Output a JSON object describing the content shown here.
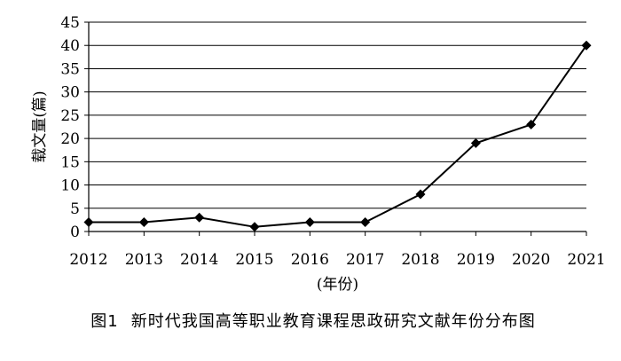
{
  "caption": {
    "label": "图1",
    "text": "新时代我国高等职业教育课程思政研究文献年份分布图"
  },
  "chart_data": {
    "type": "line",
    "title": "",
    "xlabel": "(年份)",
    "ylabel": "载文量(篇)",
    "x": [
      "2012",
      "2013",
      "2014",
      "2015",
      "2016",
      "2017",
      "2018",
      "2019",
      "2020",
      "2021"
    ],
    "series": [
      {
        "values": [
          2,
          2,
          3,
          1,
          2,
          2,
          8,
          19,
          23,
          40
        ]
      }
    ],
    "ylim": [
      0,
      45
    ],
    "yticks": [
      0,
      5,
      10,
      15,
      20,
      25,
      30,
      35,
      40,
      45
    ],
    "grid": true,
    "marker": "diamond",
    "colors": {
      "line": "#000000",
      "grid": "#000000"
    }
  }
}
